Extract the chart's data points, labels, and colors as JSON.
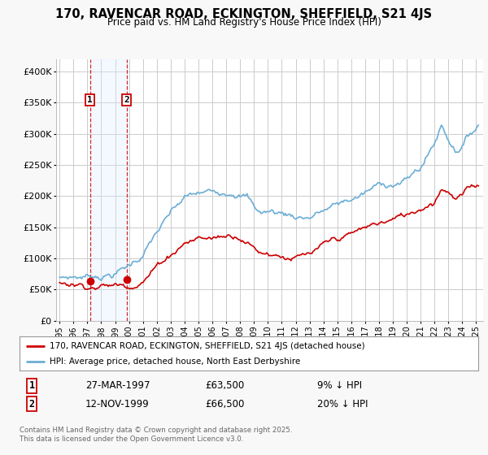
{
  "title": "170, RAVENCAR ROAD, ECKINGTON, SHEFFIELD, S21 4JS",
  "subtitle": "Price paid vs. HM Land Registry's House Price Index (HPI)",
  "legend_entry1": "170, RAVENCAR ROAD, ECKINGTON, SHEFFIELD, S21 4JS (detached house)",
  "legend_entry2": "HPI: Average price, detached house, North East Derbyshire",
  "sale1_date": "27-MAR-1997",
  "sale1_price": 63500,
  "sale1_pct": "9% ↓ HPI",
  "sale2_date": "12-NOV-1999",
  "sale2_price": 66500,
  "sale2_pct": "20% ↓ HPI",
  "footnote": "Contains HM Land Registry data © Crown copyright and database right 2025.\nThis data is licensed under the Open Government Licence v3.0.",
  "hpi_color": "#6baed6",
  "price_color": "#cc0000",
  "sale_marker_color": "#cc0000",
  "background_color": "#f8f8f8",
  "plot_bg_color": "#ffffff",
  "grid_color": "#cccccc",
  "shade_color": "#ddeeff",
  "ylim": [
    0,
    420000
  ],
  "yticks": [
    0,
    50000,
    100000,
    150000,
    200000,
    250000,
    300000,
    350000,
    400000
  ],
  "ytick_labels": [
    "£0",
    "£50K",
    "£100K",
    "£150K",
    "£200K",
    "£250K",
    "£300K",
    "£350K",
    "£400K"
  ],
  "sale1_year": 1997.23,
  "sale2_year": 1999.87
}
